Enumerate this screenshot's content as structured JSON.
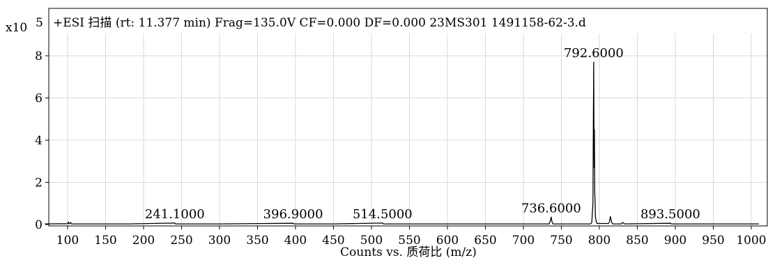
{
  "header": {
    "scan_info": "+ESI 扫描 (rt: 11.377 min) Frag=135.0V CF=0.000 DF=0.000 23MS301 1491158-62-3.d"
  },
  "y_multiplier": {
    "base": "x10",
    "exponent": "5"
  },
  "chart_data": {
    "type": "line",
    "title": "+ESI 扫描 (rt: 11.377 min) Frag=135.0V CF=0.000 DF=0.000 23MS301 1491158-62-3.d",
    "xlabel": "Counts vs. 质荷比 (m/z)",
    "ylabel": "",
    "xlim": [
      70,
      1010
    ],
    "ylim": [
      0,
      8.9
    ],
    "x_ticks": [
      100,
      150,
      200,
      250,
      300,
      350,
      400,
      450,
      500,
      550,
      600,
      650,
      700,
      750,
      800,
      850,
      900,
      950,
      1000
    ],
    "x_tick_labels": [
      "100",
      "150",
      "200",
      "250",
      "300",
      "350",
      "400",
      "450",
      "500",
      "550",
      "600",
      "650",
      "700",
      "750",
      "800",
      "850",
      "900",
      "950",
      "1000"
    ],
    "y_ticks": [
      0,
      2,
      4,
      6,
      8
    ],
    "y_tick_labels": [
      "0",
      "2",
      "4",
      "6",
      "8"
    ],
    "grid": true,
    "series": [
      {
        "points": [
          [
            70,
            0.03
          ],
          [
            100,
            0.04
          ],
          [
            101,
            0.12
          ],
          [
            102,
            0.03
          ],
          [
            104,
            0.1
          ],
          [
            105,
            0.03
          ],
          [
            130,
            0.03
          ],
          [
            180,
            0.03
          ],
          [
            241.1,
            0.07
          ],
          [
            242,
            0.03
          ],
          [
            300,
            0.03
          ],
          [
            396.9,
            0.06
          ],
          [
            398,
            0.03
          ],
          [
            450,
            0.03
          ],
          [
            514.5,
            0.07
          ],
          [
            516,
            0.03
          ],
          [
            600,
            0.03
          ],
          [
            700,
            0.03
          ],
          [
            734,
            0.03
          ],
          [
            735.5,
            0.2
          ],
          [
            736.6,
            0.35
          ],
          [
            737.5,
            0.15
          ],
          [
            739,
            0.03
          ],
          [
            788,
            0.03
          ],
          [
            790,
            0.08
          ],
          [
            791.6,
            1.0
          ],
          [
            792.2,
            5.5
          ],
          [
            792.6,
            7.7
          ],
          [
            793.0,
            3.7
          ],
          [
            793.2,
            2.7
          ],
          [
            793.5,
            4.5
          ],
          [
            793.9,
            1.5
          ],
          [
            794.3,
            1.2
          ],
          [
            794.8,
            0.4
          ],
          [
            795.5,
            0.2
          ],
          [
            797,
            0.05
          ],
          [
            812,
            0.05
          ],
          [
            813.5,
            0.15
          ],
          [
            814.5,
            0.38
          ],
          [
            815.3,
            0.25
          ],
          [
            816.5,
            0.08
          ],
          [
            818,
            0.03
          ],
          [
            829,
            0.03
          ],
          [
            830.5,
            0.1
          ],
          [
            831.5,
            0.08
          ],
          [
            833,
            0.03
          ],
          [
            893.5,
            0.06
          ],
          [
            895,
            0.03
          ],
          [
            1000,
            0.03
          ],
          [
            1010,
            0.03
          ]
        ]
      }
    ],
    "annotations": [
      {
        "text": "792.6000",
        "x": 792.6,
        "y": 7.7
      },
      {
        "text": "736.6000",
        "x": 736.6,
        "y": 0.35
      },
      {
        "text": "241.1000",
        "x": 241.1,
        "y": 0.07
      },
      {
        "text": "396.9000",
        "x": 396.9,
        "y": 0.06
      },
      {
        "text": "514.5000",
        "x": 514.5,
        "y": 0.07
      },
      {
        "text": "893.5000",
        "x": 893.5,
        "y": 0.06
      }
    ]
  }
}
